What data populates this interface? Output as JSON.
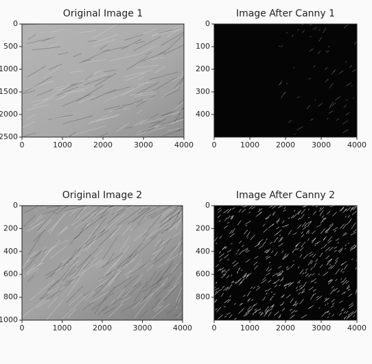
{
  "chart_data": [
    {
      "type": "image",
      "title": "Original Image 1",
      "xlim": [
        0,
        4000
      ],
      "ylim": [
        2500,
        0
      ],
      "xticks": [
        0,
        1000,
        2000,
        3000,
        4000
      ],
      "yticks": [
        0,
        500,
        1000,
        1500,
        2000,
        2500
      ]
    },
    {
      "type": "image",
      "title": "Image After Canny 1",
      "xlim": [
        0,
        4000
      ],
      "ylim": [
        500,
        0
      ],
      "xticks": [
        0,
        1000,
        2000,
        3000,
        4000
      ],
      "yticks": [
        0,
        100,
        200,
        300,
        400
      ]
    },
    {
      "type": "image",
      "title": "Original Image 2",
      "xlim": [
        0,
        4000
      ],
      "ylim": [
        1000,
        0
      ],
      "xticks": [
        0,
        1000,
        2000,
        3000,
        4000
      ],
      "yticks": [
        0,
        200,
        400,
        600,
        800,
        1000
      ]
    },
    {
      "type": "image",
      "title": "Image After Canny 2",
      "xlim": [
        0,
        4000
      ],
      "ylim": [
        1000,
        0
      ],
      "xticks": [
        0,
        1000,
        2000,
        3000,
        4000
      ],
      "yticks": [
        0,
        200,
        400,
        600,
        800
      ]
    }
  ]
}
